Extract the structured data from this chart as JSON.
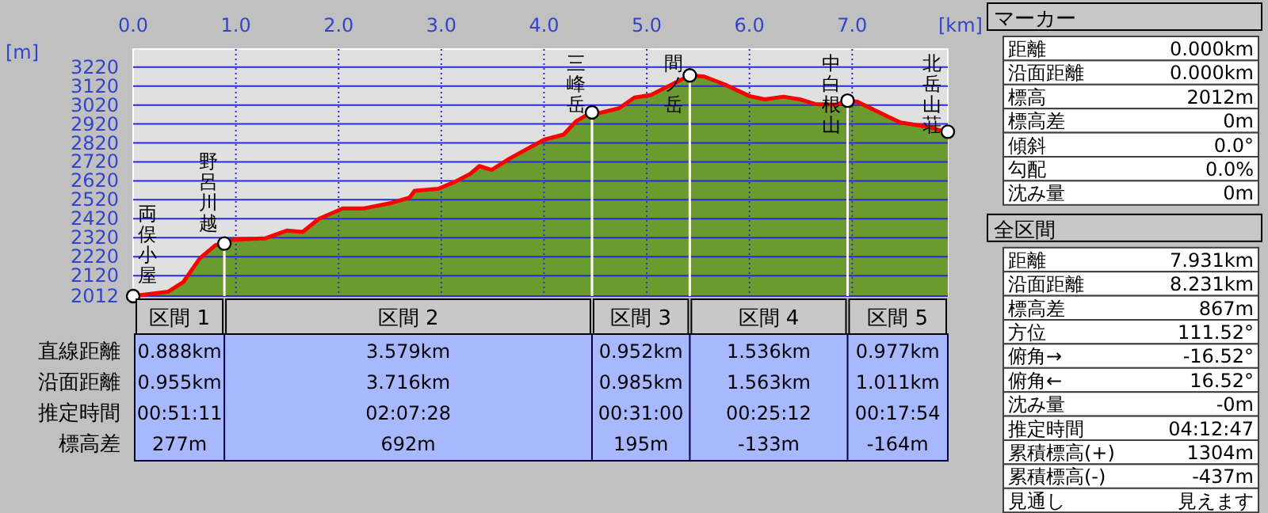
{
  "chart_data": [
    {
      "type": "area",
      "xlabel": "[km]",
      "ylabel": "[m]",
      "x": [
        0,
        0.34,
        0.49,
        0.65,
        0.8,
        0.888,
        0.96,
        1.29,
        1.5,
        1.65,
        1.81,
        1.99,
        2.04,
        2.25,
        2.51,
        2.69,
        2.74,
        2.97,
        3.13,
        3.28,
        3.37,
        3.49,
        3.67,
        4.0,
        4.19,
        4.31,
        4.44,
        4.467,
        4.52,
        4.73,
        4.88,
        5.04,
        5.19,
        5.419,
        5.56,
        5.76,
        6.0,
        6.15,
        6.33,
        6.49,
        6.64,
        6.85,
        6.955,
        7.05,
        7.18,
        7.36,
        7.47,
        7.73,
        7.88,
        7.931
      ],
      "series": [
        {
          "color": "#6b9a2e",
          "values": [
            2012,
            2035,
            2087,
            2212,
            2280,
            2289,
            2308,
            2317,
            2358,
            2350,
            2420,
            2462,
            2475,
            2475,
            2503,
            2531,
            2567,
            2578,
            2614,
            2656,
            2698,
            2678,
            2739,
            2837,
            2864,
            2933,
            2975,
            2981,
            2975,
            3003,
            3059,
            3073,
            3114,
            3176,
            3170,
            3128,
            3067,
            3050,
            3064,
            3050,
            3025,
            3022,
            3043,
            3037,
            3003,
            2956,
            2928,
            2906,
            2883,
            2879
          ]
        }
      ],
      "xlim": [
        0,
        7.931
      ],
      "ylim": [
        2012,
        3315
      ],
      "xticks": [
        {
          "value": 0,
          "label": "0.0"
        },
        {
          "value": 1,
          "label": "1.0"
        },
        {
          "value": 2,
          "label": "2.0"
        },
        {
          "value": 3,
          "label": "3.0"
        },
        {
          "value": 4,
          "label": "4.0"
        },
        {
          "value": 5,
          "label": "5.0"
        },
        {
          "value": 6,
          "label": "6.0"
        },
        {
          "value": 7,
          "label": "7.0"
        }
      ],
      "yticks": [
        2012,
        2120,
        2220,
        2320,
        2420,
        2520,
        2620,
        2720,
        2820,
        2920,
        3020,
        3120,
        3220
      ],
      "grid": true,
      "ref_lines": [
        {
          "axis": "x",
          "value": 0.888,
          "color": "#ffffff"
        },
        {
          "axis": "x",
          "value": 4.467,
          "color": "#ffffff"
        },
        {
          "axis": "x",
          "value": 5.419,
          "color": "#ffffff"
        },
        {
          "axis": "x",
          "value": 6.955,
          "color": "#ffffff"
        }
      ],
      "annotations": [
        {
          "text": "両俣小屋",
          "x": 0,
          "y": 2012
        },
        {
          "text": "野呂川越",
          "x": 0.888,
          "y": 2289
        },
        {
          "text": "三峰岳",
          "x": 4.467,
          "y": 2981
        },
        {
          "text": "間ノ岳",
          "x": 5.419,
          "y": 3176
        },
        {
          "text": "中白根山",
          "x": 6.955,
          "y": 3043
        },
        {
          "text": "北岳山荘",
          "x": 7.931,
          "y": 2879
        },
        "直線距離",
        "沿面距離",
        "推定時間",
        "標高差",
        "区間 1",
        "区間 2",
        "区間 3",
        "区間 4",
        "区間 5",
        "0.888km",
        "3.579km",
        "0.952km",
        "1.536km",
        "0.977km",
        "0.955km",
        "3.716km",
        "0.985km",
        "1.563km",
        "1.011km",
        "00:51:11",
        "02:07:28",
        "00:31:00",
        "00:25:12",
        "00:17:54",
        "277m",
        "692m",
        "195m",
        "-133m",
        "-164m"
      ]
    },
    {
      "type": "other",
      "title": "マーカー",
      "annotations": [
        "距離",
        "0.000km",
        "沿面距離",
        "0.000km",
        "標高",
        "2012m",
        "標高差",
        "0m",
        "傾斜",
        "0.0°",
        "勾配",
        "0.0%",
        "沈み量",
        "0m"
      ]
    },
    {
      "type": "other",
      "title": "全区間",
      "annotations": [
        "距離",
        "7.931km",
        "沿面距離",
        "8.231km",
        "標高差",
        "867m",
        "方位",
        "111.52°",
        "俯角→",
        "-16.52°",
        "俯角←",
        "16.52°",
        "沈み量",
        "-0m",
        "推定時間",
        "04:12:47",
        "累積標高(+)",
        "1304m",
        "累積標高(-)",
        "-437m",
        "見通し",
        "見えます"
      ]
    }
  ]
}
